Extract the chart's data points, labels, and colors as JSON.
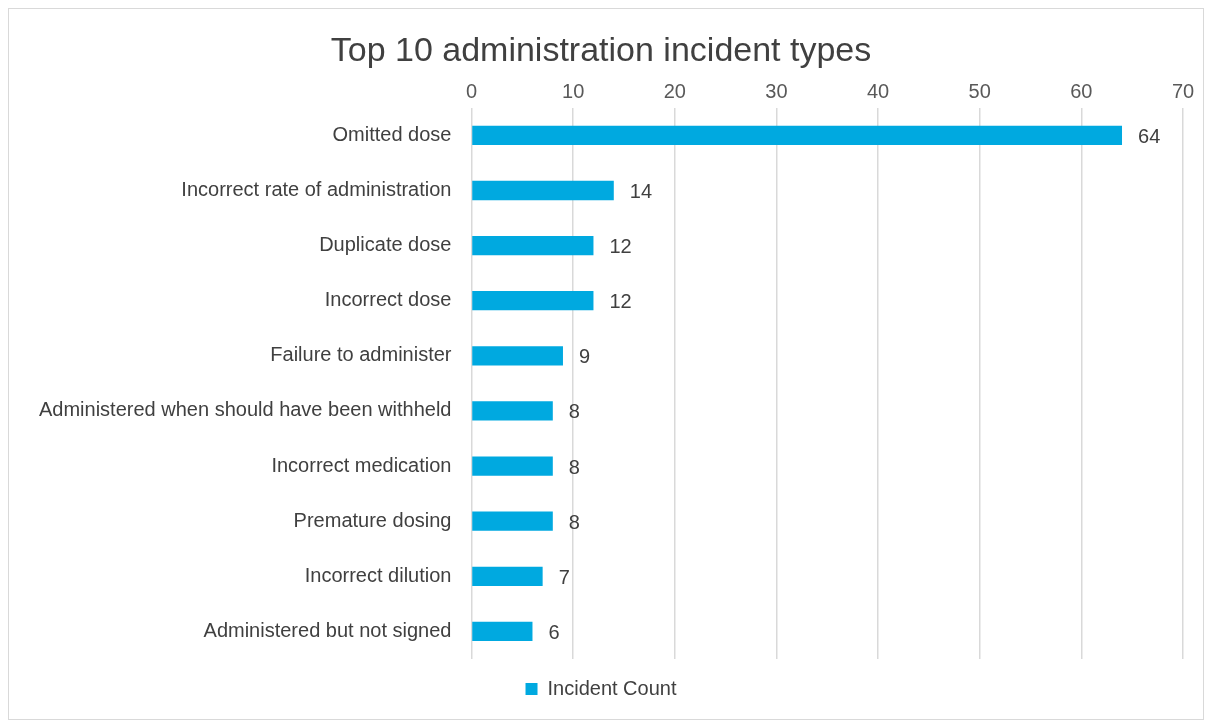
{
  "chart_data": {
    "type": "bar",
    "orientation": "horizontal",
    "title": "Top 10 administration incident types",
    "categories": [
      "Omitted dose",
      "Incorrect rate of administration",
      "Duplicate dose",
      "Incorrect dose",
      "Failure to administer",
      "Administered when should have been withheld",
      "Incorrect medication",
      "Premature dosing",
      "Incorrect dilution",
      "Administered but not signed"
    ],
    "series": [
      {
        "name": "Incident Count",
        "color": "#00a9e0",
        "values": [
          64,
          14,
          12,
          12,
          9,
          8,
          8,
          8,
          7,
          6
        ]
      }
    ],
    "xlim": [
      0,
      70
    ],
    "xticks": [
      0,
      10,
      20,
      30,
      40,
      50,
      60,
      70
    ],
    "grid": "x",
    "legend": "bottom",
    "data_labels": true
  }
}
